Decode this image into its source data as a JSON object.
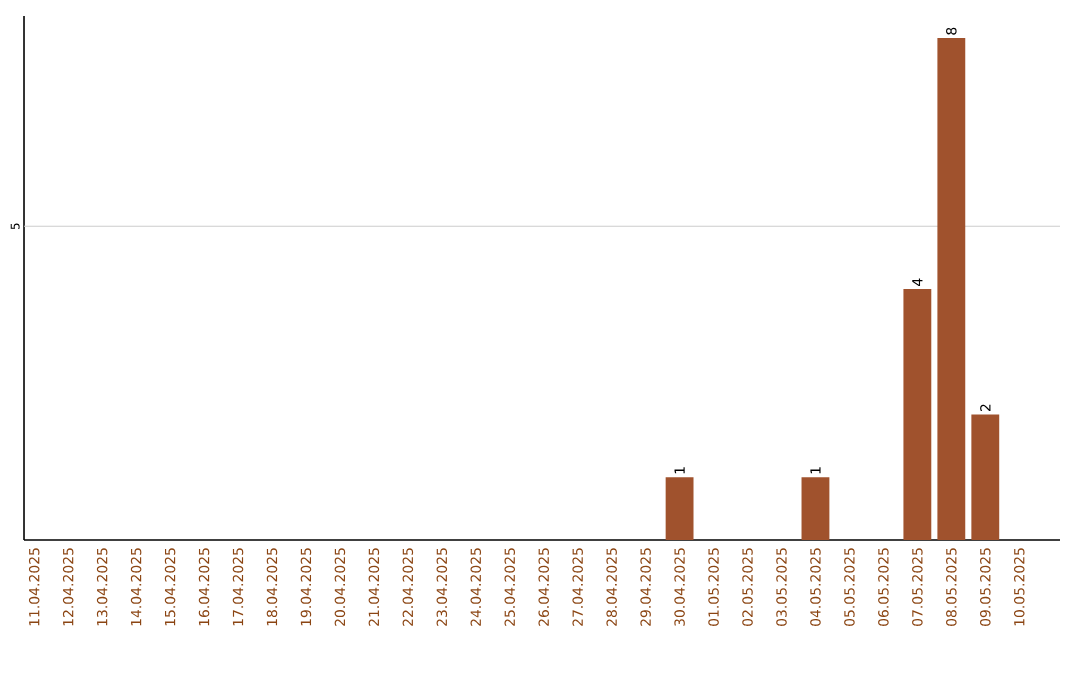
{
  "chart_data": {
    "type": "bar",
    "categories": [
      "11.04.2025",
      "12.04.2025",
      "13.04.2025",
      "14.04.2025",
      "15.04.2025",
      "16.04.2025",
      "17.04.2025",
      "18.04.2025",
      "19.04.2025",
      "20.04.2025",
      "21.04.2025",
      "22.04.2025",
      "23.04.2025",
      "24.04.2025",
      "25.04.2025",
      "26.04.2025",
      "27.04.2025",
      "28.04.2025",
      "29.04.2025",
      "30.04.2025",
      "01.05.2025",
      "02.05.2025",
      "03.05.2025",
      "04.05.2025",
      "05.05.2025",
      "06.05.2025",
      "07.05.2025",
      "08.05.2025",
      "09.05.2025",
      "10.05.2025"
    ],
    "values": [
      null,
      null,
      null,
      null,
      null,
      null,
      null,
      null,
      null,
      null,
      null,
      null,
      null,
      null,
      null,
      null,
      null,
      null,
      null,
      1,
      null,
      null,
      null,
      1,
      null,
      null,
      4,
      8,
      2,
      null
    ],
    "value_labels": [
      null,
      null,
      null,
      null,
      null,
      null,
      null,
      null,
      null,
      null,
      null,
      null,
      null,
      null,
      null,
      null,
      null,
      null,
      null,
      "1",
      null,
      null,
      null,
      "1",
      null,
      null,
      "4",
      "8",
      "2",
      null
    ],
    "ylim": [
      0,
      8.35
    ],
    "color": "#a0522d",
    "ref_lines": [
      {
        "axis": "y",
        "value": 5,
        "label": "5",
        "color": "#cccccc"
      }
    ]
  }
}
